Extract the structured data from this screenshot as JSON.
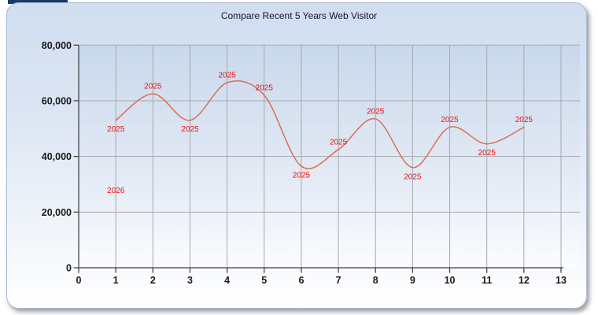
{
  "chart_data": {
    "type": "line",
    "title": "Compare Recent 5 Years Web Visitor",
    "xlabel": "",
    "ylabel": "",
    "xlim": [
      0,
      13.5
    ],
    "ylim": [
      0,
      80000
    ],
    "x_tick_labels": [
      "0",
      "1",
      "2",
      "3",
      "4",
      "5",
      "6",
      "7",
      "8",
      "9",
      "10",
      "11",
      "12",
      "13"
    ],
    "y_tick_values": [
      0,
      20000,
      40000,
      60000,
      80000
    ],
    "grid": true,
    "line_style": "spline",
    "legend": "none",
    "series": [
      {
        "name": "2025",
        "x": [
          1,
          2,
          3,
          4,
          5,
          6,
          7,
          8,
          9,
          10,
          11,
          12
        ],
        "values": [
          53000,
          62500,
          53000,
          66500,
          62000,
          36500,
          42500,
          53500,
          36000,
          50500,
          44500,
          50500
        ],
        "point_label_text": "2025",
        "point_label_sides": [
          "below",
          "above",
          "below",
          "above",
          "above",
          "below",
          "above",
          "above",
          "below",
          "above",
          "below",
          "above"
        ]
      },
      {
        "name": "2026",
        "x": [
          1
        ],
        "values": [
          25000
        ],
        "point_label_text": "2026",
        "point_label_sides": [
          "above"
        ]
      }
    ],
    "colors": {
      "line": "#d96f4f",
      "point_label": "#ea1212",
      "grid": "#a5a9b0",
      "axis": "#3a3a3a",
      "tick_label": "#1a1a1a",
      "title": "#141436",
      "plot_bg_top": "#c9d8ec",
      "plot_bg_bottom": "#fbfcfe",
      "panel_top": "#d0def0",
      "accent_sliver": "#1c3a6e"
    }
  }
}
